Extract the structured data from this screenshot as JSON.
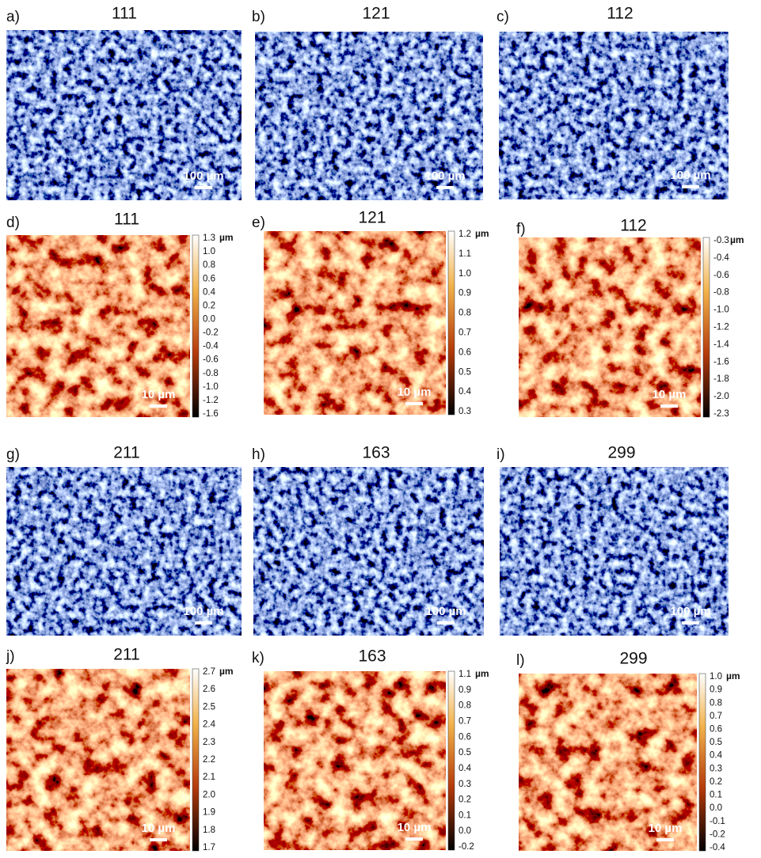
{
  "panels": [
    {
      "label": "a)",
      "title": "111",
      "scale": "100 µm"
    },
    {
      "label": "b)",
      "title": "121",
      "scale": "100 µm"
    },
    {
      "label": "c)",
      "title": "112",
      "scale": "100 µm"
    },
    {
      "label": "d)",
      "title": "111",
      "scale": "10 µm",
      "colorbar": {
        "unit": "µm",
        "ticks": [
          "1.3",
          "1.0",
          "0.8",
          "0.6",
          "0.4",
          "0.2",
          "0.0",
          "-0.2",
          "-0.4",
          "-0.6",
          "-0.8",
          "-1.0",
          "-1.2",
          "-1.6"
        ]
      }
    },
    {
      "label": "e)",
      "title": "121",
      "scale": "10 µm",
      "colorbar": {
        "unit": "µm",
        "ticks": [
          "1.2",
          "1.1",
          "1.0",
          "0.9",
          "0.8",
          "0.7",
          "0.6",
          "0.5",
          "0.4",
          "0.3"
        ]
      }
    },
    {
      "label": "f)",
      "title": "112",
      "scale": "10 µm",
      "colorbar": {
        "unit": "µm",
        "ticks": [
          "-0.3",
          "-0.4",
          "-0.6",
          "-0.8",
          "-1.0",
          "-1.2",
          "-1.4",
          "-1.6",
          "-1.8",
          "-2.0",
          "-2.3"
        ]
      }
    },
    {
      "label": "g)",
      "title": "211",
      "scale": "100 µm"
    },
    {
      "label": "h)",
      "title": "163",
      "scale": "100 µm"
    },
    {
      "label": "i)",
      "title": "299",
      "scale": "100 µm"
    },
    {
      "label": "j)",
      "title": "211",
      "scale": "10 µm",
      "colorbar": {
        "unit": "µm",
        "ticks": [
          "2.7",
          "2.6",
          "2.5",
          "2.4",
          "2.3",
          "2.2",
          "2.1",
          "2.0",
          "1.9",
          "1.8",
          "1.7"
        ]
      }
    },
    {
      "label": "k)",
      "title": "163",
      "scale": "10 µm",
      "colorbar": {
        "unit": "µm",
        "ticks": [
          "1.1",
          "0.9",
          "0.8",
          "0.7",
          "0.6",
          "0.5",
          "0.4",
          "0.3",
          "0.2",
          "0.1",
          "0.0",
          "-0.2"
        ]
      }
    },
    {
      "label": "l)",
      "title": "299",
      "scale": "10 µm",
      "colorbar": {
        "unit": "µm",
        "ticks": [
          "1.0",
          "0.9",
          "0.8",
          "0.7",
          "0.6",
          "0.5",
          "0.4",
          "0.3",
          "0.2",
          "0.1",
          "0.0",
          "-0.1",
          "-0.2",
          "-0.4"
        ]
      }
    }
  ]
}
